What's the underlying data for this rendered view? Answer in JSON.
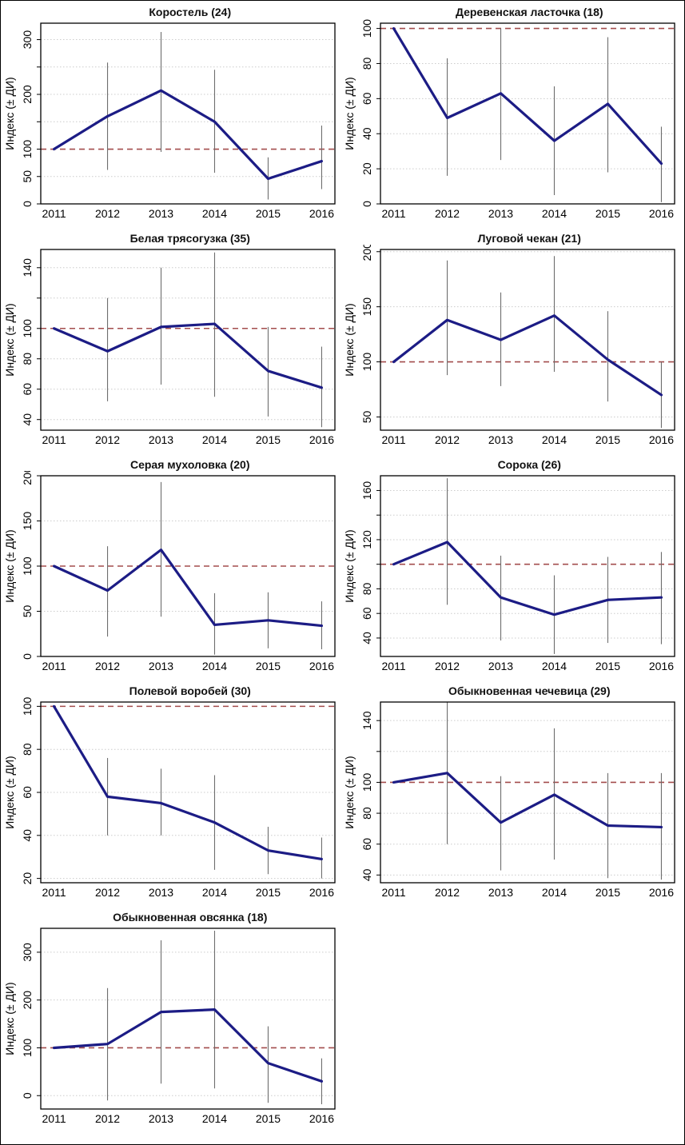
{
  "figure": {
    "ylabel": "Индекс (± ДИ)",
    "baseline_value": 100,
    "colors": {
      "series_line": "#1c1c85",
      "reference_dashed": "#a34d4d",
      "gridline": "#cccccc",
      "error_bar": "#6e6e6e",
      "axis_box": "#000000",
      "text": "#111111",
      "background": "#ffffff"
    }
  },
  "chart_data": [
    {
      "type": "line",
      "title": "Коростель (24)",
      "x": [
        2011,
        2012,
        2013,
        2014,
        2015,
        2016
      ],
      "values": [
        100,
        160,
        207,
        150,
        46,
        78
      ],
      "ci_low": [
        null,
        62,
        95,
        57,
        8,
        27
      ],
      "ci_high": [
        null,
        258,
        314,
        245,
        85,
        143
      ],
      "ylabel": "Индекс (± ДИ)",
      "ylim": [
        0,
        330
      ],
      "reference": 100,
      "ticks": [
        {
          "v": 0,
          "l": "0"
        },
        {
          "v": 50,
          "l": "50"
        },
        {
          "v": 100,
          "l": "100"
        },
        {
          "v": 150,
          "l": ""
        },
        {
          "v": 200,
          "l": "200"
        },
        {
          "v": 250,
          "l": ""
        },
        {
          "v": 300,
          "l": "300"
        }
      ]
    },
    {
      "type": "line",
      "title": "Деревенская ласточка (18)",
      "x": [
        2011,
        2012,
        2013,
        2014,
        2015,
        2016
      ],
      "values": [
        100,
        49,
        63,
        36,
        57,
        23
      ],
      "ci_low": [
        null,
        16,
        25,
        5,
        18,
        1
      ],
      "ci_high": [
        null,
        83,
        100,
        67,
        95,
        44
      ],
      "ylabel": "Индекс (± ДИ)",
      "ylim": [
        0,
        103
      ],
      "reference": 100,
      "ticks": [
        {
          "v": 0,
          "l": "0"
        },
        {
          "v": 20,
          "l": "20"
        },
        {
          "v": 40,
          "l": "40"
        },
        {
          "v": 60,
          "l": "60"
        },
        {
          "v": 80,
          "l": "80"
        },
        {
          "v": 100,
          "l": "100"
        }
      ]
    },
    {
      "type": "line",
      "title": "Белая трясогузка (35)",
      "x": [
        2011,
        2012,
        2013,
        2014,
        2015,
        2016
      ],
      "values": [
        100,
        85,
        101,
        103,
        72,
        61
      ],
      "ci_low": [
        null,
        52,
        63,
        55,
        42,
        35
      ],
      "ci_high": [
        null,
        120,
        140,
        150,
        101,
        88
      ],
      "ylabel": "Индекс (± ДИ)",
      "ylim": [
        33,
        152
      ],
      "reference": 100,
      "ticks": [
        {
          "v": 40,
          "l": "40"
        },
        {
          "v": 60,
          "l": "60"
        },
        {
          "v": 80,
          "l": "80"
        },
        {
          "v": 100,
          "l": "100"
        },
        {
          "v": 120,
          "l": ""
        },
        {
          "v": 140,
          "l": "140"
        }
      ]
    },
    {
      "type": "line",
      "title": "Луговой чекан (21)",
      "x": [
        2011,
        2012,
        2013,
        2014,
        2015,
        2016
      ],
      "values": [
        100,
        138,
        120,
        142,
        102,
        70
      ],
      "ci_low": [
        null,
        88,
        78,
        91,
        64,
        40
      ],
      "ci_high": [
        null,
        192,
        163,
        196,
        146,
        100
      ],
      "ylabel": "Индекс (± ДИ)",
      "ylim": [
        38,
        202
      ],
      "reference": 100,
      "ticks": [
        {
          "v": 50,
          "l": "50"
        },
        {
          "v": 100,
          "l": "100"
        },
        {
          "v": 150,
          "l": "150"
        },
        {
          "v": 200,
          "l": "200"
        }
      ]
    },
    {
      "type": "line",
      "title": "Серая мухоловка (20)",
      "x": [
        2011,
        2012,
        2013,
        2014,
        2015,
        2016
      ],
      "values": [
        100,
        73,
        118,
        35,
        40,
        34
      ],
      "ci_low": [
        null,
        22,
        44,
        2,
        9,
        8
      ],
      "ci_high": [
        null,
        122,
        193,
        70,
        71,
        61
      ],
      "ylabel": "Индекс (± ДИ)",
      "ylim": [
        0,
        200
      ],
      "reference": 100,
      "ticks": [
        {
          "v": 0,
          "l": "0"
        },
        {
          "v": 50,
          "l": "50"
        },
        {
          "v": 100,
          "l": "100"
        },
        {
          "v": 150,
          "l": "150"
        },
        {
          "v": 200,
          "l": "200"
        }
      ]
    },
    {
      "type": "line",
      "title": "Сорока (26)",
      "x": [
        2011,
        2012,
        2013,
        2014,
        2015,
        2016
      ],
      "values": [
        100,
        118,
        73,
        59,
        71,
        73
      ],
      "ci_low": [
        null,
        67,
        38,
        27,
        36,
        35
      ],
      "ci_high": [
        null,
        170,
        107,
        91,
        106,
        110
      ],
      "ylabel": "Индекс (± ДИ)",
      "ylim": [
        25,
        172
      ],
      "reference": 100,
      "ticks": [
        {
          "v": 40,
          "l": "40"
        },
        {
          "v": 60,
          "l": "60"
        },
        {
          "v": 80,
          "l": "80"
        },
        {
          "v": 100,
          "l": ""
        },
        {
          "v": 120,
          "l": "120"
        },
        {
          "v": 140,
          "l": ""
        },
        {
          "v": 160,
          "l": "160"
        }
      ]
    },
    {
      "type": "line",
      "title": "Полевой воробей (30)",
      "x": [
        2011,
        2012,
        2013,
        2014,
        2015,
        2016
      ],
      "values": [
        100,
        58,
        55,
        46,
        33,
        29
      ],
      "ci_low": [
        null,
        40,
        40,
        24,
        22,
        20
      ],
      "ci_high": [
        null,
        76,
        71,
        68,
        44,
        39
      ],
      "ylabel": "Индекс (± ДИ)",
      "ylim": [
        18,
        102
      ],
      "reference": 100,
      "ticks": [
        {
          "v": 20,
          "l": "20"
        },
        {
          "v": 40,
          "l": "40"
        },
        {
          "v": 60,
          "l": "60"
        },
        {
          "v": 80,
          "l": "80"
        },
        {
          "v": 100,
          "l": "100"
        }
      ]
    },
    {
      "type": "line",
      "title": "Обыкновенная чечевица (29)",
      "x": [
        2011,
        2012,
        2013,
        2014,
        2015,
        2016
      ],
      "values": [
        100,
        106,
        74,
        92,
        72,
        71
      ],
      "ci_low": [
        null,
        60,
        43,
        50,
        38,
        37
      ],
      "ci_high": [
        null,
        152,
        104,
        135,
        106,
        106
      ],
      "ylabel": "Индекс (± ДИ)",
      "ylim": [
        35,
        152
      ],
      "reference": 100,
      "ticks": [
        {
          "v": 40,
          "l": "40"
        },
        {
          "v": 60,
          "l": "60"
        },
        {
          "v": 80,
          "l": "80"
        },
        {
          "v": 100,
          "l": "100"
        },
        {
          "v": 120,
          "l": ""
        },
        {
          "v": 140,
          "l": "140"
        }
      ]
    },
    {
      "type": "line",
      "title": "Обыкновенная овсянка (18)",
      "x": [
        2011,
        2012,
        2013,
        2014,
        2015,
        2016
      ],
      "values": [
        100,
        108,
        175,
        180,
        68,
        30
      ],
      "ci_low": [
        null,
        -10,
        25,
        15,
        -15,
        -18
      ],
      "ci_high": [
        null,
        225,
        325,
        345,
        145,
        78
      ],
      "ylabel": "Индекс (± ДИ)",
      "ylim": [
        -28,
        350
      ],
      "reference": 100,
      "ticks": [
        {
          "v": 0,
          "l": "0"
        },
        {
          "v": 100,
          "l": "100"
        },
        {
          "v": 200,
          "l": "200"
        },
        {
          "v": 300,
          "l": "300"
        }
      ]
    }
  ]
}
